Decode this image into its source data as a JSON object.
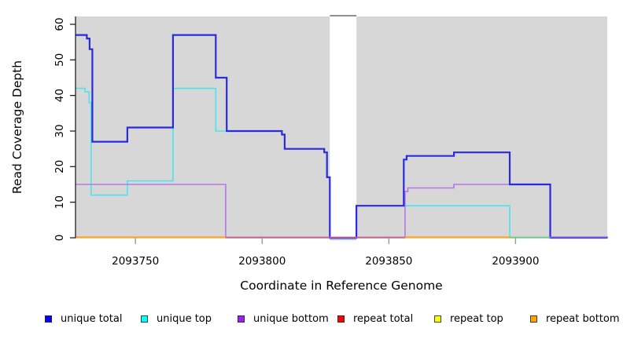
{
  "figure": {
    "x_title": "Coordinate in Reference Genome",
    "y_title": "Read Coverage Depth"
  },
  "chart_data": {
    "type": "line",
    "subtype": "step-after",
    "title": "",
    "xlabel": "Coordinate in Reference Genome",
    "ylabel": "Read Coverage Depth",
    "x_domain": [
      2093726.5,
      2093936.2
    ],
    "y_domain": [
      0,
      62.2
    ],
    "grid": false,
    "legend_position": "bottom",
    "plot_background": "#D7D7D7",
    "x_ticks": [
      {
        "value": 2093750,
        "label": "2093750"
      },
      {
        "value": 2093800,
        "label": "2093800"
      },
      {
        "value": 2093850,
        "label": "2093850"
      },
      {
        "value": 2093900,
        "label": "2093900"
      }
    ],
    "y_ticks": [
      {
        "value": 0,
        "label": "0"
      },
      {
        "value": 10,
        "label": "10"
      },
      {
        "value": 20,
        "label": "20"
      },
      {
        "value": 30,
        "label": "30"
      },
      {
        "value": 40,
        "label": "40"
      },
      {
        "value": 50,
        "label": "50"
      },
      {
        "value": 60,
        "label": "60"
      }
    ],
    "gap_region": {
      "x_start": 2093826.7,
      "x_end": 2093837.2,
      "fill": "#FFFFFF",
      "cap_color": "#8F8F8F"
    },
    "series": [
      {
        "name": "unique top",
        "color": "#4AE4F0",
        "width": 1.6,
        "points": [
          [
            2093726.5,
            42
          ],
          [
            2093730.1,
            41
          ],
          [
            2093731.7,
            38
          ],
          [
            2093732.5,
            12
          ],
          [
            2093746.8,
            16
          ],
          [
            2093764.8,
            42
          ],
          [
            2093781.7,
            30
          ],
          [
            2093807.8,
            29
          ],
          [
            2093808.9,
            25
          ],
          [
            2093824.5,
            24
          ],
          [
            2093825.6,
            17
          ],
          [
            2093826.7,
            0
          ],
          [
            2093837.2,
            9
          ],
          [
            2093897.7,
            0
          ]
        ]
      },
      {
        "name": "unique bottom",
        "color": "#B678E6",
        "width": 1.6,
        "points": [
          [
            2093726.5,
            15
          ],
          [
            2093785.6,
            0
          ],
          [
            2093856.4,
            13
          ],
          [
            2093857.5,
            14
          ],
          [
            2093875.7,
            15
          ],
          [
            2093913.7,
            0
          ]
        ]
      },
      {
        "name": "unique total",
        "color": "#2A2ADF",
        "width": 2.2,
        "points": [
          [
            2093726.5,
            57
          ],
          [
            2093730.8,
            56
          ],
          [
            2093731.9,
            53
          ],
          [
            2093733.0,
            27
          ],
          [
            2093746.8,
            31
          ],
          [
            2093764.8,
            57
          ],
          [
            2093781.7,
            45
          ],
          [
            2093786.0,
            30
          ],
          [
            2093807.8,
            29
          ],
          [
            2093808.9,
            25
          ],
          [
            2093824.5,
            24
          ],
          [
            2093825.6,
            17
          ],
          [
            2093826.7,
            0
          ],
          [
            2093837.2,
            9
          ],
          [
            2093855.9,
            22
          ],
          [
            2093857.0,
            23
          ],
          [
            2093875.7,
            24
          ],
          [
            2093897.7,
            15
          ],
          [
            2093913.7,
            0
          ]
        ]
      }
    ],
    "zero_segments": [
      {
        "name": "repeat-bottom-left",
        "color": "#FFA126",
        "x_start": 2093726.5,
        "x_end": 2093785.6,
        "width": 2.2,
        "y_offset": 0
      },
      {
        "name": "repeat-total",
        "color": "#CE5F7E",
        "x_start": 2093785.6,
        "x_end": 2093856.4,
        "width": 1.8,
        "y_offset": 0
      },
      {
        "name": "repeat-bottom-right",
        "color": "#FFA126",
        "x_start": 2093856.4,
        "x_end": 2093897.7,
        "width": 2.2,
        "y_offset": 0
      },
      {
        "name": "repeat-top-blend",
        "color": "#7CC47E",
        "x_start": 2093897.7,
        "x_end": 2093913.7,
        "width": 1.8,
        "y_offset": 0
      },
      {
        "name": "unique-zero-blend",
        "color": "#6E5BE0",
        "x_start": 2093913.7,
        "x_end": 2093936.5,
        "width": 2.0,
        "y_offset": 0
      },
      {
        "name": "gap-underline-blue",
        "color": "#8FA8F0",
        "x_start": 2093826.7,
        "x_end": 2093837.2,
        "width": 1.6,
        "y_offset": 2.5
      }
    ]
  },
  "legend": {
    "items": [
      {
        "label": "unique total",
        "color": "#0000FF"
      },
      {
        "label": "unique top",
        "color": "#00FFFF"
      },
      {
        "label": "unique bottom",
        "color": "#A020F0"
      },
      {
        "label": "repeat total",
        "color": "#FF0000"
      },
      {
        "label": "repeat top",
        "color": "#FFFF00"
      },
      {
        "label": "repeat bottom",
        "color": "#FFA500"
      }
    ]
  }
}
